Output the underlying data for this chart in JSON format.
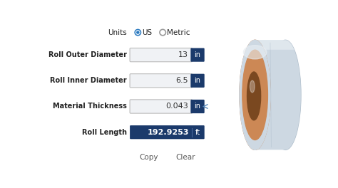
{
  "bg_color": "#ffffff",
  "units_label": "Units",
  "units_options": [
    "US",
    "Metric"
  ],
  "fields": [
    {
      "label": "Roll Outer Diameter",
      "value": "13",
      "unit": "in",
      "dark": false,
      "arrow": false
    },
    {
      "label": "Roll Inner Diameter",
      "value": "6.5",
      "unit": "in",
      "dark": false,
      "arrow": false
    },
    {
      "label": "Material Thickness",
      "value": "0.043",
      "unit": "in",
      "dark": false,
      "arrow": true
    },
    {
      "label": "Roll Length",
      "value": "192.9253",
      "unit": "ft",
      "dark": true,
      "arrow": false
    }
  ],
  "copy_label": "Copy",
  "clear_label": "Clear",
  "field_box_color": "#f0f2f5",
  "field_border_color": "#bbbbbb",
  "unit_badge_color": "#1b3a6b",
  "unit_badge_text_color": "#ffffff",
  "dark_field_color": "#1b3a6b",
  "dark_field_text_color": "#ffffff",
  "label_color": "#222222",
  "radio_active_color": "#2979c0",
  "radio_inactive_color": "#999999",
  "button_color": "#555555",
  "arrow_color": "#5588bb",
  "roll_outer_color": "#cdd8e2",
  "roll_outer_dark": "#b0bfcc",
  "roll_inner_color": "#cc8855",
  "roll_core_color": "#b06030",
  "roll_highlight": "#e8eef3",
  "roll_shadow": "#a8b8c8"
}
